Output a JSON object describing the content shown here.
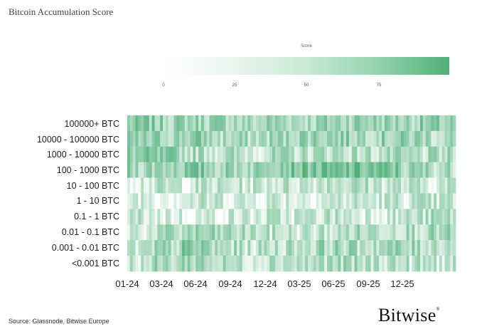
{
  "chart_data": {
    "type": "heatmap",
    "title": "Bitcoin Accumulation Score",
    "colorbar": {
      "title": "Score",
      "ticks": [
        "0",
        "25",
        "50",
        "75"
      ],
      "range": [
        0,
        100
      ],
      "color_low": "#ffffff",
      "color_high": "#4fb079"
    },
    "rows": [
      "100000+ BTC",
      "10000 - 100000 BTC",
      "1000 - 10000 BTC",
      "100 - 1000 BTC",
      "10 - 100 BTC",
      "1 - 10 BTC",
      "0.1 - 1 BTC",
      "0.01 - 0.1 BTC",
      "0.001 - 0.01 BTC",
      "<0.001 BTC"
    ],
    "x_tick_labels": [
      "01-24",
      "03-24",
      "06-24",
      "09-24",
      "12-24",
      "03-25",
      "06-25",
      "09-25",
      "12-25"
    ],
    "x_range": [
      "2024-01-01",
      "2026-03-15"
    ],
    "row_period_means": [
      [
        60,
        55,
        55,
        55,
        45,
        55,
        50,
        55,
        60,
        55,
        55,
        55
      ],
      [
        50,
        55,
        60,
        45,
        45,
        50,
        60,
        60,
        55,
        55,
        55,
        45
      ],
      [
        60,
        55,
        45,
        40,
        35,
        40,
        40,
        45,
        40,
        40,
        35,
        40
      ],
      [
        55,
        60,
        65,
        55,
        55,
        75,
        75,
        70,
        75,
        70,
        50,
        45
      ],
      [
        30,
        30,
        30,
        30,
        30,
        35,
        35,
        45,
        40,
        35,
        30,
        30
      ],
      [
        30,
        25,
        30,
        30,
        25,
        30,
        25,
        30,
        30,
        30,
        30,
        30
      ],
      [
        30,
        25,
        20,
        25,
        25,
        30,
        30,
        35,
        30,
        30,
        35,
        40
      ],
      [
        30,
        40,
        50,
        45,
        40,
        35,
        30,
        35,
        45,
        45,
        45,
        45
      ],
      [
        30,
        45,
        60,
        40,
        35,
        40,
        45,
        50,
        45,
        50,
        45,
        45
      ],
      [
        35,
        45,
        55,
        40,
        35,
        45,
        40,
        45,
        40,
        40,
        35,
        35
      ]
    ]
  },
  "source": "Source: Glassnode, Bitwise Europe",
  "brand": {
    "name": "Bitwise",
    "mark": "®"
  }
}
